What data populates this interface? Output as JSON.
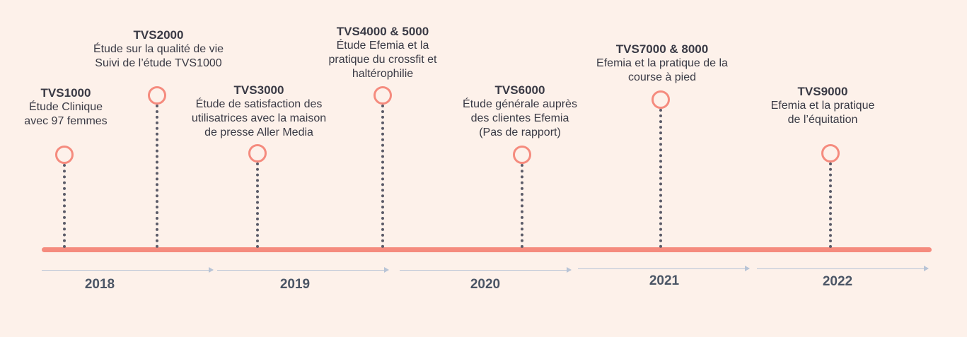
{
  "colors": {
    "background": "#fdf1ea",
    "timeline": "#f58b7e",
    "stem": "#5b5b68",
    "text": "#3a3a45",
    "arrow": "#b8c4d6"
  },
  "milestones": [
    {
      "title": "TVS1000",
      "lines": [
        "Étude Clinique",
        "avec 97 femmes"
      ]
    },
    {
      "title": "TVS2000",
      "lines": [
        "Étude sur la qualité de vie",
        "Suivi de l’étude  TVS1000"
      ]
    },
    {
      "title": "TVS3000",
      "lines": [
        "Étude de satisfaction des",
        "utilisatrices avec la maison",
        "de presse Aller Media"
      ]
    },
    {
      "title": "TVS4000 & 5000",
      "lines": [
        "Étude Efemia et la",
        "pratique du crossfit  et",
        "haltérophilie"
      ]
    },
    {
      "title": "TVS6000",
      "lines": [
        "Étude générale auprès",
        "des clientes Efemia",
        "(Pas de rapport)"
      ]
    },
    {
      "title": "TVS7000 & 8000",
      "lines": [
        "Efemia et la pratique de la",
        "course à pied"
      ]
    },
    {
      "title": "TVS9000",
      "lines": [
        "Efemia et la pratique",
        "de l’équitation"
      ]
    }
  ],
  "years": [
    "2018",
    "2019",
    "2020",
    "2021",
    "2022"
  ]
}
